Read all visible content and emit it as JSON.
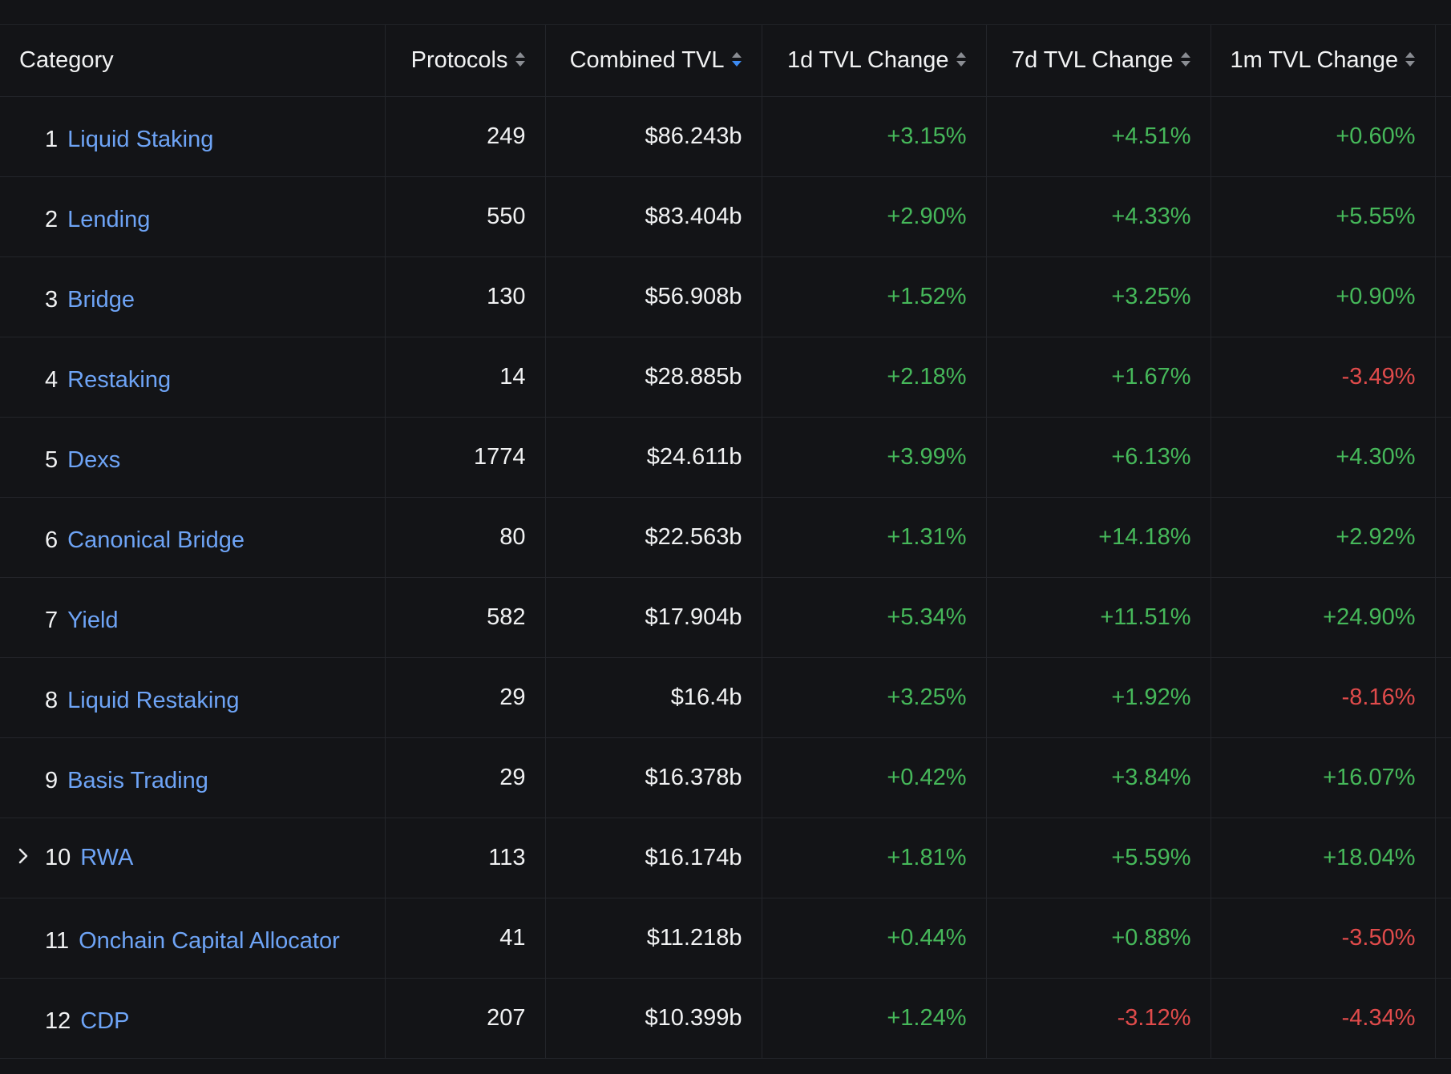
{
  "headers": {
    "category": "Category",
    "protocols": "Protocols",
    "combined_tvl": "Combined TVL",
    "change_1d": "1d TVL Change",
    "change_7d": "7d TVL Change",
    "change_1m": "1m TVL Change"
  },
  "sort": {
    "active_column": "combined_tvl",
    "direction": "descending",
    "active_color": "#3d8bf2",
    "inactive_color": "#8a8d93"
  },
  "colors": {
    "link": "#6ea4f6",
    "positive": "#46b85a",
    "negative": "#e04b4b",
    "background": "#131417"
  },
  "rows": [
    {
      "rank": "1",
      "name": "Liquid Staking",
      "protocols": "249",
      "tvl": "$86.243b",
      "c1d": "+3.15%",
      "c7d": "+4.51%",
      "c1m": "+0.60%",
      "expandable": false
    },
    {
      "rank": "2",
      "name": "Lending",
      "protocols": "550",
      "tvl": "$83.404b",
      "c1d": "+2.90%",
      "c7d": "+4.33%",
      "c1m": "+5.55%",
      "expandable": false
    },
    {
      "rank": "3",
      "name": "Bridge",
      "protocols": "130",
      "tvl": "$56.908b",
      "c1d": "+1.52%",
      "c7d": "+3.25%",
      "c1m": "+0.90%",
      "expandable": false
    },
    {
      "rank": "4",
      "name": "Restaking",
      "protocols": "14",
      "tvl": "$28.885b",
      "c1d": "+2.18%",
      "c7d": "+1.67%",
      "c1m": "-3.49%",
      "expandable": false
    },
    {
      "rank": "5",
      "name": "Dexs",
      "protocols": "1774",
      "tvl": "$24.611b",
      "c1d": "+3.99%",
      "c7d": "+6.13%",
      "c1m": "+4.30%",
      "expandable": false
    },
    {
      "rank": "6",
      "name": "Canonical Bridge",
      "protocols": "80",
      "tvl": "$22.563b",
      "c1d": "+1.31%",
      "c7d": "+14.18%",
      "c1m": "+2.92%",
      "expandable": false
    },
    {
      "rank": "7",
      "name": "Yield",
      "protocols": "582",
      "tvl": "$17.904b",
      "c1d": "+5.34%",
      "c7d": "+11.51%",
      "c1m": "+24.90%",
      "expandable": false
    },
    {
      "rank": "8",
      "name": "Liquid Restaking",
      "protocols": "29",
      "tvl": "$16.4b",
      "c1d": "+3.25%",
      "c7d": "+1.92%",
      "c1m": "-8.16%",
      "expandable": false
    },
    {
      "rank": "9",
      "name": "Basis Trading",
      "protocols": "29",
      "tvl": "$16.378b",
      "c1d": "+0.42%",
      "c7d": "+3.84%",
      "c1m": "+16.07%",
      "expandable": false
    },
    {
      "rank": "10",
      "name": "RWA",
      "protocols": "113",
      "tvl": "$16.174b",
      "c1d": "+1.81%",
      "c7d": "+5.59%",
      "c1m": "+18.04%",
      "expandable": true
    },
    {
      "rank": "11",
      "name": "Onchain Capital Allocator",
      "protocols": "41",
      "tvl": "$11.218b",
      "c1d": "+0.44%",
      "c7d": "+0.88%",
      "c1m": "-3.50%",
      "expandable": false
    },
    {
      "rank": "12",
      "name": "CDP",
      "protocols": "207",
      "tvl": "$10.399b",
      "c1d": "+1.24%",
      "c7d": "-3.12%",
      "c1m": "-4.34%",
      "expandable": false
    }
  ]
}
